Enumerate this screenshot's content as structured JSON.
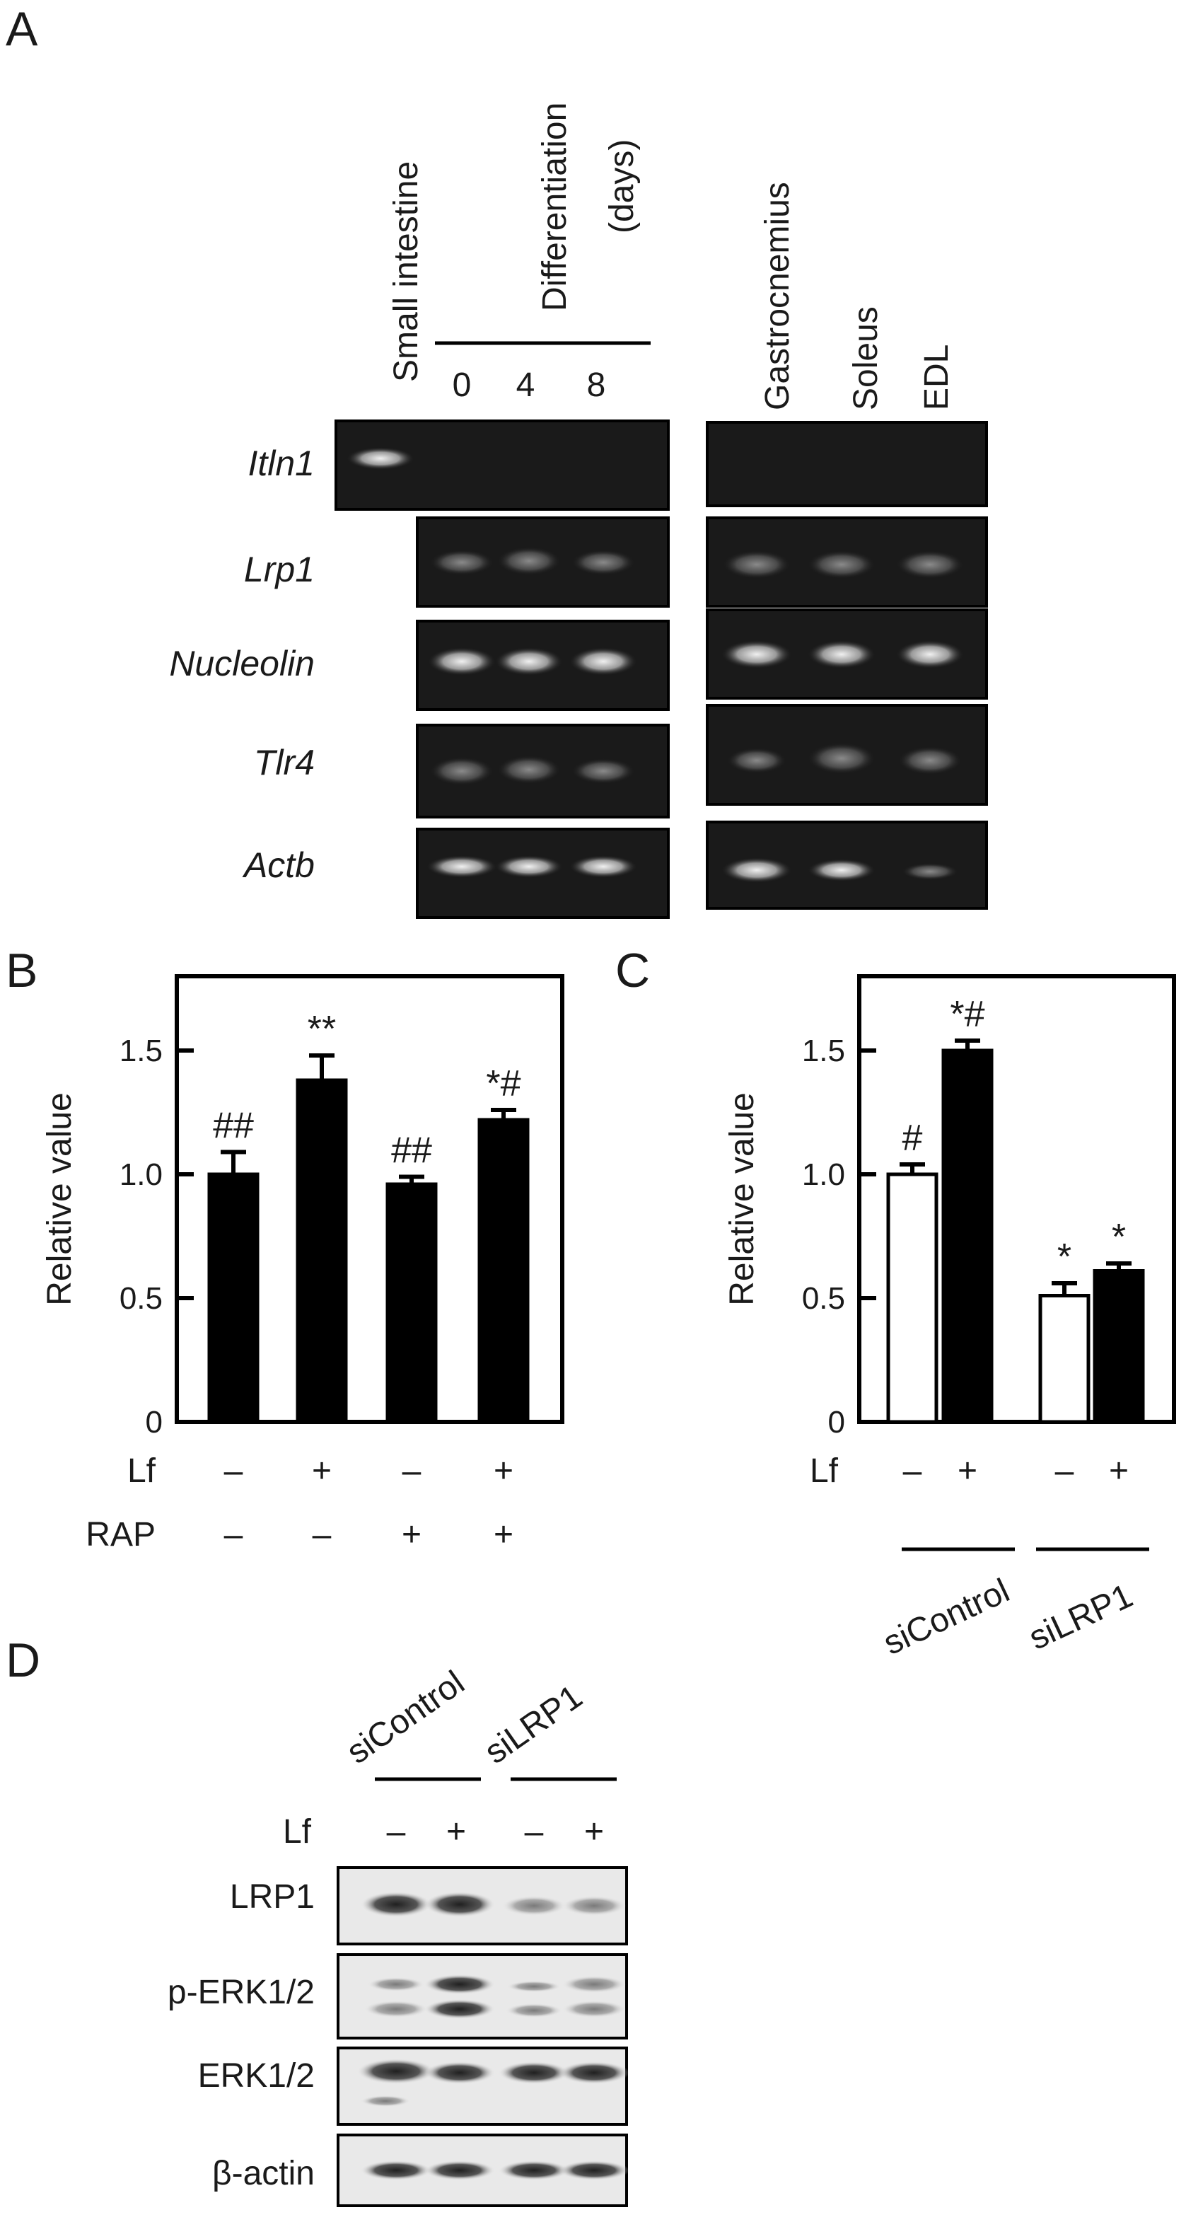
{
  "panels": {
    "a": "A",
    "b": "B",
    "c": "C",
    "d": "D"
  },
  "panel_a": {
    "small_intestine_label": "Small intestine",
    "differentiation_label": "Differentiation",
    "days_label": "(days)",
    "day_labels": [
      "0",
      "4",
      "8"
    ],
    "muscle_labels": [
      "Gastrocnemius",
      "Soleus",
      "EDL"
    ],
    "genes": [
      "Itln1",
      "Lrp1",
      "Nucleolin",
      "Tlr4",
      "Actb"
    ]
  },
  "panel_d": {
    "groups": [
      "siControl",
      "siLRP1"
    ],
    "lf_label": "Lf",
    "lf_signs": [
      "–",
      "+",
      "–",
      "+"
    ],
    "blots": [
      "LRP1",
      "p-ERK1/2",
      "ERK1/2",
      "β-actin"
    ]
  },
  "chart_data": [
    {
      "type": "bar",
      "ylabel": "Relative value",
      "ylim": [
        0,
        1.8
      ],
      "yticks": [
        "0",
        "0.5",
        "1.0",
        "1.5"
      ],
      "values": [
        1.0,
        1.38,
        0.96,
        1.22
      ],
      "errors": [
        0.09,
        0.1,
        0.03,
        0.04
      ],
      "annotations": [
        "##",
        "**",
        "##",
        "*#"
      ],
      "bar_colors": [
        "#000000",
        "#000000",
        "#000000",
        "#000000"
      ],
      "rows": [
        {
          "label": "Lf",
          "signs": [
            "–",
            "+",
            "–",
            "+"
          ]
        },
        {
          "label": "RAP",
          "signs": [
            "–",
            "–",
            "+",
            "+"
          ]
        }
      ]
    },
    {
      "type": "bar",
      "ylabel": "Relative value",
      "ylim": [
        0,
        1.8
      ],
      "yticks": [
        "0",
        "0.5",
        "1.0",
        "1.5"
      ],
      "values": [
        1.0,
        1.5,
        0.51,
        0.61
      ],
      "errors": [
        0.04,
        0.04,
        0.05,
        0.03
      ],
      "annotations": [
        "#",
        "*#",
        "*",
        "*"
      ],
      "bar_colors": [
        "#ffffff",
        "#000000",
        "#ffffff",
        "#000000"
      ],
      "rows": [
        {
          "label": "Lf",
          "signs": [
            "–",
            "+",
            "–",
            "+"
          ]
        }
      ],
      "groups": [
        "siControl",
        "siLRP1"
      ]
    }
  ]
}
